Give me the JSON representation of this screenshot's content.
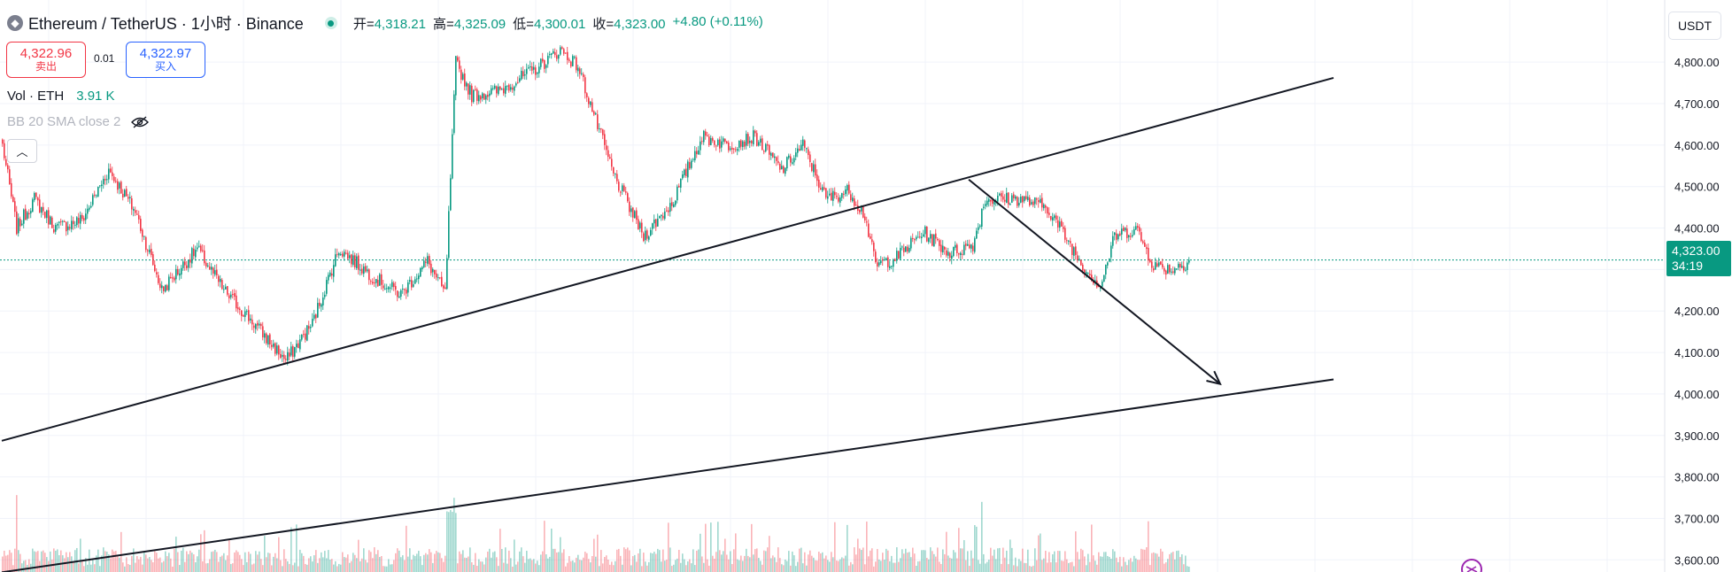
{
  "symbol": {
    "title": "Ethereum / TetherUS · 1小时 · Binance",
    "icon": "ethereum-icon",
    "ohlc": [
      {
        "k": "开",
        "v": "4,318.21"
      },
      {
        "k": "高",
        "v": "4,325.09"
      },
      {
        "k": "低",
        "v": "4,300.01"
      },
      {
        "k": "收",
        "v": "4,323.00"
      },
      {
        "k": "",
        "v": "+4.80 (+0.11%)"
      }
    ]
  },
  "trade": {
    "sell_price": "4,322.96",
    "sell_label": "卖出",
    "spread": "0.01",
    "buy_price": "4,322.97",
    "buy_label": "买入"
  },
  "volume_legend": {
    "label": "Vol · ETH",
    "value": "3.91 K"
  },
  "bb_legend": "BB 20 SMA close 2",
  "currency": "USDT",
  "last_price": {
    "price": "4,323.00",
    "countdown": "34:19"
  },
  "colors": {
    "up": "#089981",
    "down": "#f23645",
    "grid": "#f0f3fa",
    "price_line": "#089981"
  },
  "chart_data": {
    "type": "candlestick",
    "series_name": "ETHUSDT 1h",
    "y_ticks": [
      "4,800.00",
      "4,700.00",
      "4,600.00",
      "4,500.00",
      "4,400.00",
      "4,300.00",
      "4,200.00",
      "4,100.00",
      "4,000.00",
      "3,900.00",
      "3,800.00",
      "3,700.00",
      "3,600.00"
    ],
    "y_tick_values": [
      4800,
      4700,
      4600,
      4500,
      4400,
      4300,
      4200,
      4100,
      4000,
      3900,
      3800,
      3700,
      3600
    ],
    "ylim": [
      3575,
      4890
    ],
    "bars": 335,
    "anchors": [
      [
        0,
        4600
      ],
      [
        8,
        4400
      ],
      [
        18,
        4470
      ],
      [
        30,
        4400
      ],
      [
        45,
        4420
      ],
      [
        60,
        4540
      ],
      [
        75,
        4440
      ],
      [
        90,
        4250
      ],
      [
        110,
        4350
      ],
      [
        125,
        4250
      ],
      [
        140,
        4180
      ],
      [
        160,
        4080
      ],
      [
        175,
        4170
      ],
      [
        190,
        4350
      ],
      [
        210,
        4280
      ],
      [
        225,
        4240
      ],
      [
        240,
        4320
      ],
      [
        250,
        4240
      ],
      [
        256,
        4800
      ],
      [
        265,
        4720
      ],
      [
        280,
        4730
      ],
      [
        300,
        4780
      ],
      [
        315,
        4830
      ],
      [
        325,
        4790
      ],
      [
        345,
        4530
      ],
      [
        362,
        4380
      ],
      [
        378,
        4460
      ],
      [
        395,
        4620
      ],
      [
        410,
        4600
      ],
      [
        425,
        4620
      ],
      [
        440,
        4540
      ],
      [
        452,
        4600
      ],
      [
        465,
        4470
      ],
      [
        478,
        4490
      ],
      [
        487,
        4430
      ],
      [
        493,
        4310
      ],
      [
        505,
        4330
      ],
      [
        520,
        4390
      ],
      [
        535,
        4340
      ],
      [
        548,
        4360
      ],
      [
        555,
        4470
      ],
      [
        575,
        4470
      ],
      [
        590,
        4450
      ],
      [
        600,
        4380
      ],
      [
        610,
        4310
      ],
      [
        620,
        4260
      ],
      [
        628,
        4380
      ],
      [
        640,
        4400
      ],
      [
        650,
        4310
      ],
      [
        660,
        4300
      ],
      [
        670,
        4320
      ],
      [
        668,
        4323
      ]
    ],
    "last_close": 4323.0,
    "drawings": [
      {
        "type": "trendline",
        "points": [
          [
            "bar 0",
            3887
          ],
          [
            "bar 752",
            4762
          ]
        ]
      },
      {
        "type": "trendline",
        "points": [
          [
            "bar 0",
            3570
          ],
          [
            "bar 752",
            4035
          ]
        ]
      },
      {
        "type": "arrow",
        "points": [
          [
            "bar 546",
            4517
          ],
          [
            "bar 688",
            4024
          ]
        ]
      }
    ]
  }
}
